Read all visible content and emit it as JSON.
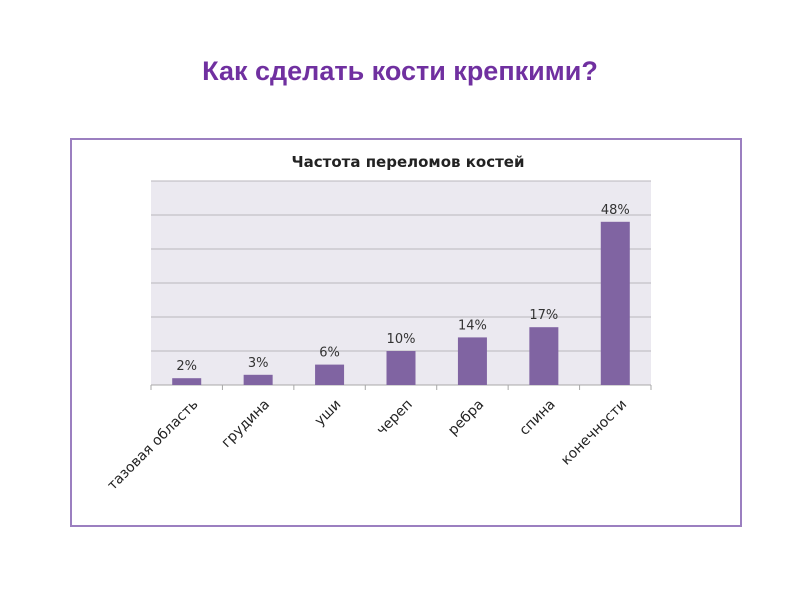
{
  "slide": {
    "title": "Как сделать кости крепкими?"
  },
  "chart_data": {
    "type": "bar",
    "title": "Частота переломов костей",
    "categories": [
      "тазовая область",
      "грудина",
      "уши",
      "череп",
      "ребра",
      "спина",
      "конечности"
    ],
    "values": [
      2,
      3,
      6,
      10,
      14,
      17,
      48
    ],
    "labels": [
      "2%",
      "3%",
      "6%",
      "10%",
      "14%",
      "17%",
      "48%"
    ],
    "xlabel": "",
    "ylabel": "",
    "ylim": [
      0,
      60
    ],
    "ytick_step": 10,
    "grid": true,
    "legend": "none",
    "bar_color": "#8064a2",
    "plot_bg": "#ebe9f0"
  }
}
